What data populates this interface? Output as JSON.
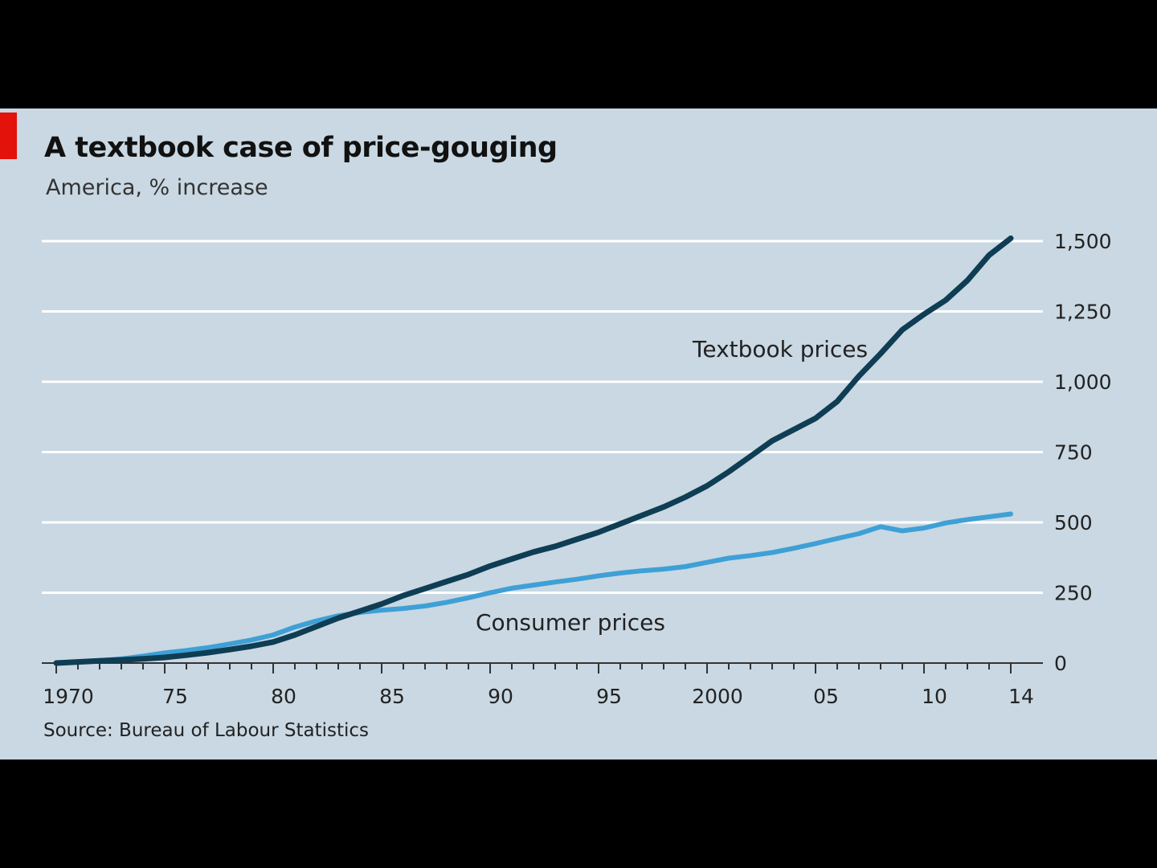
{
  "title": "A textbook case of price-gouging",
  "subtitle": "America, % increase",
  "source": "Source: Bureau of Labour Statistics",
  "colors": {
    "background": "#c9d8e2",
    "accent": "#e3120b",
    "textbook": "#0e3d54",
    "consumer": "#3ea0d6",
    "grid": "#ffffff"
  },
  "chart_data": {
    "type": "line",
    "title": "A textbook case of price-gouging",
    "subtitle": "America, % increase",
    "xlim": [
      1970,
      2014
    ],
    "ylim": [
      0,
      1500
    ],
    "yticks": [
      0,
      250,
      500,
      750,
      1000,
      1250,
      1500
    ],
    "ytick_labels": [
      "0",
      "250",
      "500",
      "750",
      "1,000",
      "1,250",
      "1,500"
    ],
    "xticks": [
      1970,
      1975,
      1980,
      1985,
      1990,
      1995,
      2000,
      2005,
      2010,
      2014
    ],
    "xtick_labels": [
      "1970",
      "75",
      "80",
      "85",
      "90",
      "95",
      "2000",
      "05",
      "10",
      "14"
    ],
    "grid": true,
    "y_axis_side": "right",
    "x": [
      1970,
      1971,
      1972,
      1973,
      1974,
      1975,
      1976,
      1977,
      1978,
      1979,
      1980,
      1981,
      1982,
      1983,
      1984,
      1985,
      1986,
      1987,
      1988,
      1989,
      1990,
      1991,
      1992,
      1993,
      1994,
      1995,
      1996,
      1997,
      1998,
      1999,
      2000,
      2001,
      2002,
      2003,
      2004,
      2005,
      2006,
      2007,
      2008,
      2009,
      2010,
      2011,
      2012,
      2013,
      2014
    ],
    "series": [
      {
        "name": "Textbook prices",
        "values": [
          0,
          4,
          8,
          11,
          15,
          20,
          28,
          37,
          48,
          60,
          75,
          100,
          130,
          160,
          185,
          210,
          240,
          265,
          290,
          315,
          345,
          370,
          395,
          415,
          440,
          465,
          495,
          525,
          555,
          590,
          630,
          680,
          735,
          790,
          830,
          870,
          930,
          1020,
          1100,
          1185,
          1240,
          1290,
          1360,
          1450,
          1510
        ]
      },
      {
        "name": "Consumer prices",
        "values": [
          0,
          5,
          9,
          15,
          25,
          36,
          45,
          55,
          68,
          82,
          100,
          128,
          150,
          168,
          180,
          188,
          194,
          203,
          216,
          232,
          250,
          266,
          277,
          288,
          298,
          310,
          320,
          328,
          334,
          343,
          358,
          373,
          382,
          393,
          408,
          425,
          443,
          460,
          485,
          470,
          480,
          498,
          510,
          520,
          530
        ]
      }
    ]
  }
}
